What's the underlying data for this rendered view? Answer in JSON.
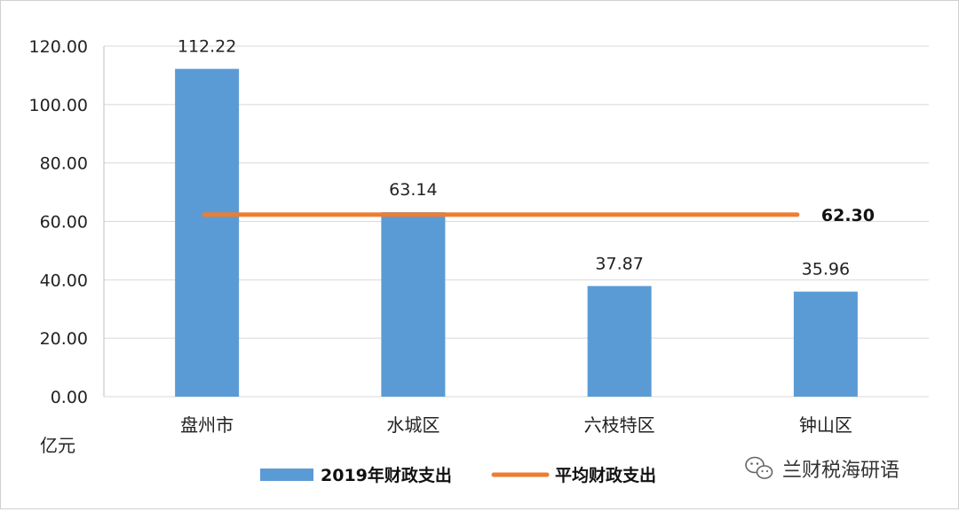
{
  "chart_data": {
    "type": "bar",
    "categories": [
      "盘州市",
      "水城区",
      "六枝特区",
      "钟山区"
    ],
    "series": [
      {
        "name": "2019年财政支出",
        "type": "bar",
        "values": [
          112.22,
          63.14,
          37.87,
          35.96
        ],
        "color": "#5B9BD5"
      },
      {
        "name": "平均财政支出",
        "type": "line",
        "values": [
          62.3,
          62.3,
          62.3,
          62.3
        ],
        "color": "#ED7D31"
      }
    ],
    "data_labels": [
      "112.22",
      "63.14",
      "37.87",
      "35.96"
    ],
    "avg_label": "62.30",
    "ylabel": "亿元",
    "ylim": [
      0,
      120
    ],
    "yticks": [
      "0.00",
      "20.00",
      "40.00",
      "60.00",
      "80.00",
      "100.00",
      "120.00"
    ],
    "grid": true,
    "legend": "bottom"
  },
  "watermark": {
    "icon": "wechat-icon",
    "text": "兰财税海研语"
  }
}
